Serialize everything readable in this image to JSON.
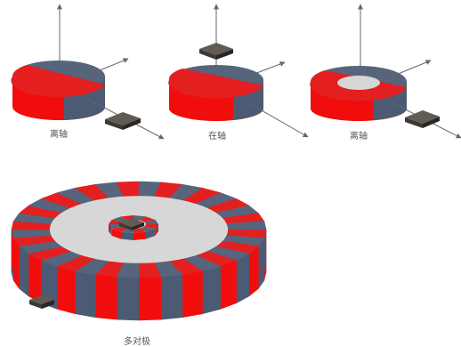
{
  "labels": {
    "off_axis_1": "离轴",
    "on_axis": "在轴",
    "off_axis_2": "离轴",
    "multipole": "多对极"
  },
  "colors": {
    "magnet_red": "#f20d0d",
    "magnet_red_dark": "#c60606",
    "magnet_blue": "#4c5a73",
    "magnet_blue_dark": "#3b4760",
    "magnet_top_red": "#e41f1f",
    "magnet_top_blue": "#56647c",
    "center_gray": "#d7d7d7",
    "sensor_dark": "#3d3833",
    "sensor_top": "#615b53",
    "axis_line": "#666666"
  }
}
